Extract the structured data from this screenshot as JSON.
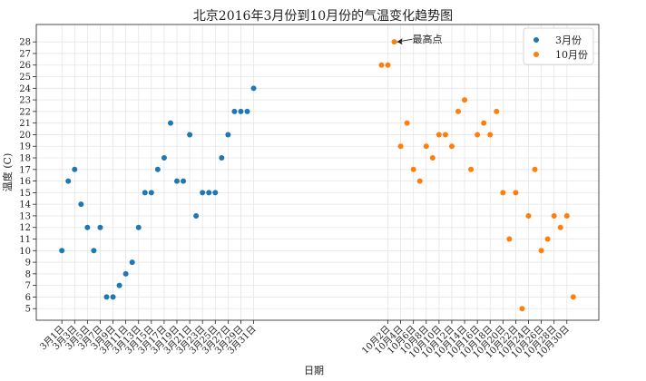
{
  "chart_data": {
    "type": "scatter",
    "title": "北京2016年3月份到10月份的气温变化趋势图",
    "xlabel": "日期",
    "ylabel": "温度 (C)",
    "ylim": [
      4,
      29.5
    ],
    "yticks": [
      5,
      6,
      7,
      8,
      9,
      10,
      11,
      12,
      13,
      14,
      15,
      16,
      17,
      18,
      19,
      20,
      21,
      22,
      23,
      24,
      25,
      26,
      27,
      28
    ],
    "grid": true,
    "legend": "top-right",
    "series": [
      {
        "name": "3月份",
        "color": "#1f77b4",
        "x": [
          1,
          2,
          3,
          4,
          5,
          6,
          7,
          8,
          9,
          10,
          11,
          12,
          13,
          14,
          15,
          16,
          17,
          18,
          19,
          20,
          21,
          22,
          23,
          24,
          25,
          26,
          27,
          28,
          29,
          30,
          31
        ],
        "values": [
          10,
          16,
          17,
          14,
          12,
          10,
          12,
          6,
          6,
          7,
          8,
          9,
          12,
          15,
          15,
          17,
          18,
          21,
          16,
          16,
          20,
          13,
          15,
          15,
          15,
          18,
          20,
          22,
          22,
          22,
          24
        ]
      },
      {
        "name": "10月份",
        "color": "#ff7f0e",
        "x": [
          51,
          52,
          53,
          54,
          55,
          56,
          57,
          58,
          59,
          60,
          61,
          62,
          63,
          64,
          65,
          66,
          67,
          68,
          69,
          70,
          71,
          72,
          73,
          74,
          75,
          76,
          77,
          78,
          79,
          80,
          81
        ],
        "values": [
          26,
          26,
          28,
          19,
          21,
          17,
          16,
          19,
          18,
          20,
          20,
          19,
          22,
          23,
          17,
          20,
          21,
          20,
          22,
          15,
          11,
          15,
          5,
          13,
          17,
          10,
          11,
          13,
          12,
          13,
          6
        ]
      }
    ],
    "xticks": [
      {
        "x": 1,
        "label": "3月1日"
      },
      {
        "x": 3,
        "label": "3月3日"
      },
      {
        "x": 5,
        "label": "3月5日"
      },
      {
        "x": 7,
        "label": "3月7日"
      },
      {
        "x": 9,
        "label": "3月9日"
      },
      {
        "x": 11,
        "label": "3月11日"
      },
      {
        "x": 13,
        "label": "3月13日"
      },
      {
        "x": 15,
        "label": "3月15日"
      },
      {
        "x": 17,
        "label": "3月17日"
      },
      {
        "x": 19,
        "label": "3月19日"
      },
      {
        "x": 21,
        "label": "3月21日"
      },
      {
        "x": 23,
        "label": "3月23日"
      },
      {
        "x": 25,
        "label": "3月25日"
      },
      {
        "x": 27,
        "label": "3月27日"
      },
      {
        "x": 29,
        "label": "3月29日"
      },
      {
        "x": 31,
        "label": "3月31日"
      },
      {
        "x": 52,
        "label": "10月2日"
      },
      {
        "x": 54,
        "label": "10月4日"
      },
      {
        "x": 56,
        "label": "10月6日"
      },
      {
        "x": 58,
        "label": "10月8日"
      },
      {
        "x": 60,
        "label": "10月10日"
      },
      {
        "x": 62,
        "label": "10月12日"
      },
      {
        "x": 64,
        "label": "10月14日"
      },
      {
        "x": 66,
        "label": "10月16日"
      },
      {
        "x": 68,
        "label": "10月18日"
      },
      {
        "x": 70,
        "label": "10月20日"
      },
      {
        "x": 72,
        "label": "10月22日"
      },
      {
        "x": 74,
        "label": "10月24日"
      },
      {
        "x": 76,
        "label": "10月26日"
      },
      {
        "x": 78,
        "label": "10月28日"
      },
      {
        "x": 80,
        "label": "10月30日"
      }
    ],
    "annotation": {
      "text": "最高点",
      "x": 53,
      "y": 28
    },
    "colors": {
      "series1": "#1f77b4",
      "series2": "#ff7f0e"
    }
  }
}
